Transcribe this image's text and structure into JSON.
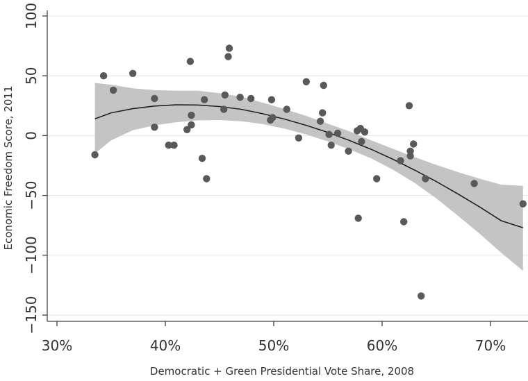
{
  "chart_data": {
    "type": "scatter",
    "xlabel": "Democratic + Green Presidential Vote Share, 2008",
    "ylabel": "Economic Freedom Score, 2011",
    "xlim": [
      0.28,
      0.735
    ],
    "ylim": [
      -155,
      102
    ],
    "x_ticks": [
      0.3,
      0.4,
      0.5,
      0.6,
      0.7
    ],
    "x_tick_labels": [
      "30%",
      "40%",
      "50%",
      "60%",
      "70%"
    ],
    "y_ticks": [
      100,
      50,
      0,
      -50,
      -100,
      -150
    ],
    "y_tick_labels": [
      "100",
      "50",
      "0",
      "−50",
      "−100",
      "−150"
    ],
    "grid": true,
    "colors": {
      "points": "#595959",
      "fit": "#222222",
      "band": "#c4c4c4",
      "axis": "#444444"
    },
    "points": [
      {
        "x": 0.335,
        "y": -16
      },
      {
        "x": 0.343,
        "y": 50
      },
      {
        "x": 0.352,
        "y": 38
      },
      {
        "x": 0.37,
        "y": 52
      },
      {
        "x": 0.39,
        "y": 31
      },
      {
        "x": 0.39,
        "y": 7
      },
      {
        "x": 0.403,
        "y": -8
      },
      {
        "x": 0.408,
        "y": -8
      },
      {
        "x": 0.42,
        "y": 5
      },
      {
        "x": 0.423,
        "y": 62
      },
      {
        "x": 0.424,
        "y": 17
      },
      {
        "x": 0.424,
        "y": 9
      },
      {
        "x": 0.434,
        "y": -19
      },
      {
        "x": 0.436,
        "y": 30
      },
      {
        "x": 0.438,
        "y": -36
      },
      {
        "x": 0.454,
        "y": 22
      },
      {
        "x": 0.455,
        "y": 34
      },
      {
        "x": 0.458,
        "y": 66
      },
      {
        "x": 0.459,
        "y": 73
      },
      {
        "x": 0.469,
        "y": 32
      },
      {
        "x": 0.479,
        "y": 31
      },
      {
        "x": 0.497,
        "y": 13
      },
      {
        "x": 0.498,
        "y": 30
      },
      {
        "x": 0.499,
        "y": 15
      },
      {
        "x": 0.512,
        "y": 22
      },
      {
        "x": 0.523,
        "y": -2
      },
      {
        "x": 0.53,
        "y": 45
      },
      {
        "x": 0.543,
        "y": 12
      },
      {
        "x": 0.545,
        "y": 19
      },
      {
        "x": 0.546,
        "y": 42
      },
      {
        "x": 0.551,
        "y": 1
      },
      {
        "x": 0.553,
        "y": -8
      },
      {
        "x": 0.559,
        "y": 2
      },
      {
        "x": 0.569,
        "y": -13
      },
      {
        "x": 0.577,
        "y": 4
      },
      {
        "x": 0.578,
        "y": -69
      },
      {
        "x": 0.58,
        "y": 6
      },
      {
        "x": 0.581,
        "y": -5
      },
      {
        "x": 0.584,
        "y": 3
      },
      {
        "x": 0.595,
        "y": -36
      },
      {
        "x": 0.617,
        "y": -21
      },
      {
        "x": 0.62,
        "y": -72
      },
      {
        "x": 0.625,
        "y": 25
      },
      {
        "x": 0.626,
        "y": -13
      },
      {
        "x": 0.626,
        "y": -17
      },
      {
        "x": 0.629,
        "y": -7
      },
      {
        "x": 0.636,
        "y": -134
      },
      {
        "x": 0.64,
        "y": -36
      },
      {
        "x": 0.685,
        "y": -40
      },
      {
        "x": 0.73,
        "y": -57
      }
    ],
    "fit": {
      "x": [
        0.335,
        0.35,
        0.37,
        0.39,
        0.41,
        0.43,
        0.45,
        0.47,
        0.49,
        0.51,
        0.53,
        0.55,
        0.57,
        0.59,
        0.61,
        0.63,
        0.65,
        0.67,
        0.69,
        0.71,
        0.73
      ],
      "y": [
        14,
        19,
        22.5,
        24.7,
        25.7,
        25.6,
        24.3,
        22,
        18.3,
        13.8,
        8.6,
        2.6,
        -4.1,
        -11.5,
        -19.8,
        -28.8,
        -38.4,
        -48.8,
        -59.6,
        -71.2,
        -77
      ],
      "lower": [
        -15,
        -4,
        4.5,
        8.6,
        11.2,
        12.7,
        13,
        12,
        9.6,
        5.8,
        1,
        -4.8,
        -11.5,
        -19,
        -28.5,
        -39.5,
        -52.5,
        -67,
        -82,
        -98,
        -113
      ],
      "upper": [
        44,
        42.5,
        39.5,
        38,
        37.5,
        37.5,
        35.5,
        32.5,
        27.5,
        22.2,
        16.5,
        10,
        3.5,
        -4,
        -11,
        -18,
        -24.5,
        -30.5,
        -36,
        -41,
        -42
      ]
    }
  }
}
